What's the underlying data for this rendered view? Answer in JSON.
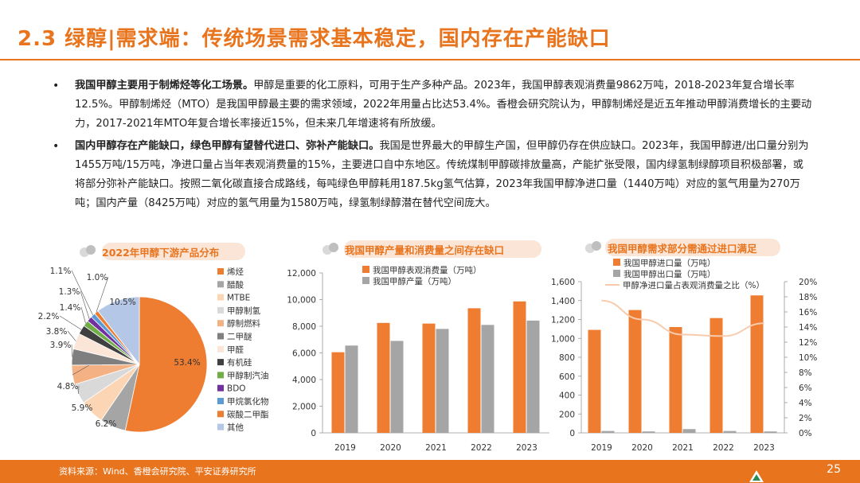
{
  "title": "2.3 绿醇|需求端：传统场景需求基本稳定，国内存在产能缺口",
  "bullets": [
    {
      "bold": "我国甲醇主要用于制烯烃等化工场景。",
      "text": "甲醇是重要的化工原料，可用于生产多种产品。2023年，我国甲醇表观消费量9862万吨，2018-2023年复合增长率12.5%。甲醇制烯烃（MTO）是我国甲醇最主要的需求领域，2022年用量占比达53.4%。香橙会研究院认为，甲醇制烯烃是近五年推动甲醇消费增长的主要动力，2017-2021年MTO年复合增长率接近15%，但未来几年增速将有所放缓。"
    },
    {
      "bold": "国内甲醇存在产能缺口，绿色甲醇有望替代进口、弥补产能缺口。",
      "text": "我国是世界最大的甲醇生产国，但甲醇仍存在供应缺口。2023年，我国甲醇进/出口量分别为1455万吨/15万吨，净进口量占当年表观消费量的15%，主要进口自中东地区。传统煤制甲醇碳排放量高，产能扩张受限，国内绿氢制绿醇项目积极部署，或将部分弥补产能缺口。按照二氧化碳直接合成路线，每吨绿色甲醇耗用187.5kg氢气估算，2023年我国甲醇净进口量（1440万吨）对应的氢气用量为270万吨；国内产量（8425万吨）对应的氢气用量为1580万吨，绿氢制绿醇潜在替代空间庞大。"
    }
  ],
  "chart_titles": [
    "2022年甲醇下游产品分布",
    "我国甲醇产量和消费量之间存在缺口",
    "我国甲醇需求部分需通过进口满足"
  ],
  "chart_data": [
    {
      "type": "pie",
      "title": "2022年甲醇下游产品分布",
      "labels": [
        "烯烃",
        "醋酸",
        "MTBE",
        "甲醇制氢",
        "醇制燃料",
        "二甲醚",
        "甲醛",
        "有机硅",
        "甲醇制汽油",
        "BDO",
        "甲烷氯化物",
        "碳酸二甲酯",
        "其他"
      ],
      "values": [
        53.4,
        6.2,
        5.9,
        4.8,
        4.6,
        3.9,
        3.8,
        2.2,
        1.4,
        1.3,
        1.1,
        1.0,
        10.5
      ],
      "value_labels": [
        "53.4%",
        "6.2%",
        "5.9%",
        "4.8%",
        "4.6%",
        "3.9%",
        "3.8%",
        "2.2%",
        "1.4%",
        "1.3%",
        "1.1%",
        "1.0%",
        "10.5%"
      ],
      "colors": [
        "#ee7d31",
        "#a5a5a5",
        "#fcd5b4",
        "#d9d9d9",
        "#f4b183",
        "#7f7f7f",
        "#fbe5d6",
        "#404040",
        "#70ad47",
        "#7030a0",
        "#5b9bd5",
        "#ed7d31",
        "#b4c7e7"
      ],
      "legend": "right"
    },
    {
      "type": "bar",
      "title": "我国甲醇产量和消费量之间存在缺口",
      "categories": [
        "2019",
        "2020",
        "2021",
        "2022",
        "2023"
      ],
      "series": [
        {
          "name": "我国甲醇表观消费量（万吨）",
          "values": [
            6050,
            8250,
            8200,
            9350,
            9862
          ],
          "color": "#ee7d31"
        },
        {
          "name": "我国甲醇产量（万吨）",
          "values": [
            6550,
            6900,
            7800,
            8100,
            8425
          ],
          "color": "#a5a5a5"
        }
      ],
      "yticks": [
        "0",
        "2,000",
        "4,000",
        "6,000",
        "8,000",
        "10,000",
        "12,000"
      ],
      "ylim": [
        0,
        12000
      ],
      "legend": "top-left"
    },
    {
      "type": "bar",
      "title": "我国甲醇需求部分需通过进口满足",
      "categories": [
        "2019",
        "2020",
        "2021",
        "2022",
        "2023"
      ],
      "series": [
        {
          "name": "我国甲醇进口量（万吨）",
          "values": [
            1090,
            1300,
            1120,
            1215,
            1455
          ],
          "color": "#ee7d31"
        },
        {
          "name": "我国甲醇出口量（万吨）",
          "values": [
            20,
            15,
            40,
            20,
            15
          ],
          "color": "#a5a5a5"
        },
        {
          "name": "甲醇净进口量占表观消费量之比（%）",
          "values": [
            17.5,
            15.0,
            13.0,
            12.8,
            14.5
          ],
          "color": "#f8cbad",
          "axis": "right",
          "style": "line"
        }
      ],
      "yticks": [
        "0",
        "200",
        "400",
        "600",
        "800",
        "1,000",
        "1,200",
        "1,400",
        "1,600"
      ],
      "ylim": [
        0,
        1600
      ],
      "y2ticks": [
        "0%",
        "2%",
        "4%",
        "6%",
        "8%",
        "10%",
        "12%",
        "14%",
        "16%",
        "18%",
        "20%"
      ],
      "y2lim": [
        0,
        20
      ],
      "legend": "top-left"
    }
  ],
  "footer": {
    "source": "资料来源：Wind、香橙会研究院、平安证券研究所",
    "page": "25"
  },
  "colors": {
    "accent": "#e8741e"
  }
}
